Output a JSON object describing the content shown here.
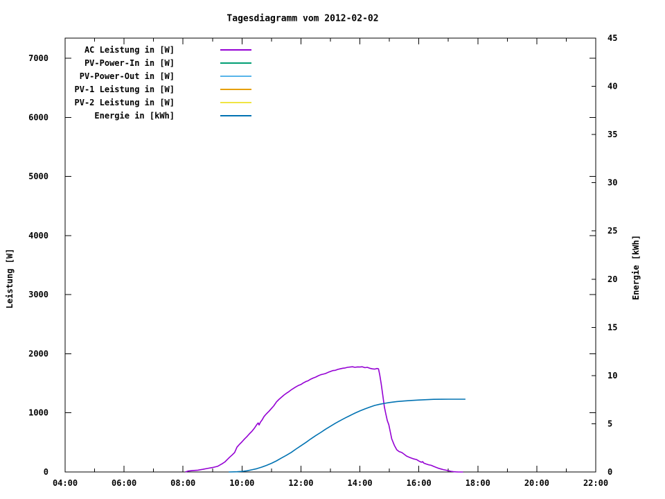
{
  "title": "Tagesdiagramm vom 2012-02-02",
  "axes": {
    "ylabel": "Leistung [W]",
    "y2label": "Energie [kWh]",
    "x_tick_labels": [
      "04:00",
      "06:00",
      "08:00",
      "10:00",
      "12:00",
      "14:00",
      "16:00",
      "18:00",
      "20:00",
      "22:00"
    ],
    "y_tick_labels": [
      "0",
      "1000",
      "2000",
      "3000",
      "4000",
      "5000",
      "6000",
      "7000"
    ],
    "y2_tick_labels": [
      "0",
      "5",
      "10",
      "15",
      "20",
      "25",
      "30",
      "35",
      "40",
      "45"
    ]
  },
  "legend": [
    {
      "label": "AC Leistung in [W]",
      "color": "#9400d3"
    },
    {
      "label": "PV-Power-In in [W]",
      "color": "#009e73"
    },
    {
      "label": "PV-Power-Out in [W]",
      "color": "#56b4e9"
    },
    {
      "label": "PV-1 Leistung in [W]",
      "color": "#e69f00"
    },
    {
      "label": "PV-2 Leistung in [W]",
      "color": "#f0e442"
    },
    {
      "label": "Energie in [kWh]",
      "color": "#0072b2"
    }
  ],
  "chart_data": {
    "type": "line",
    "title": "Tagesdiagramm vom 2012-02-02",
    "x_axis": {
      "label": "",
      "unit": "hours",
      "range": [
        4,
        22
      ],
      "major_tick_hours": [
        4,
        6,
        8,
        10,
        12,
        14,
        16,
        18,
        20,
        22
      ],
      "minor_tick_hours": [
        5,
        7,
        9,
        11,
        13,
        15,
        17,
        19,
        21
      ]
    },
    "y_axis": {
      "label": "Leistung [W]",
      "range": [
        0,
        7340
      ],
      "ticks": [
        0,
        1000,
        2000,
        3000,
        4000,
        5000,
        6000,
        7000
      ]
    },
    "y2_axis": {
      "label": "Energie [kWh]",
      "range": [
        0,
        45
      ],
      "ticks": [
        0,
        5,
        10,
        15,
        20,
        25,
        30,
        35,
        40,
        45
      ]
    },
    "grid": false,
    "legend_position": "inside-top-left",
    "series": [
      {
        "name": "AC Leistung in [W]",
        "color": "#9400d3",
        "axis": "y",
        "points": [
          [
            8.08,
            0
          ],
          [
            8.17,
            15
          ],
          [
            8.33,
            25
          ],
          [
            8.5,
            30
          ],
          [
            8.67,
            45
          ],
          [
            8.83,
            60
          ],
          [
            9.0,
            75
          ],
          [
            9.17,
            95
          ],
          [
            9.33,
            140
          ],
          [
            9.42,
            170
          ],
          [
            9.5,
            210
          ],
          [
            9.58,
            250
          ],
          [
            9.67,
            290
          ],
          [
            9.75,
            330
          ],
          [
            9.83,
            420
          ],
          [
            9.92,
            470
          ],
          [
            10.0,
            510
          ],
          [
            10.08,
            555
          ],
          [
            10.17,
            600
          ],
          [
            10.25,
            645
          ],
          [
            10.33,
            685
          ],
          [
            10.42,
            740
          ],
          [
            10.5,
            800
          ],
          [
            10.55,
            830
          ],
          [
            10.58,
            795
          ],
          [
            10.63,
            845
          ],
          [
            10.67,
            870
          ],
          [
            10.75,
            940
          ],
          [
            10.83,
            985
          ],
          [
            10.92,
            1030
          ],
          [
            11.0,
            1075
          ],
          [
            11.08,
            1120
          ],
          [
            11.17,
            1185
          ],
          [
            11.25,
            1225
          ],
          [
            11.33,
            1260
          ],
          [
            11.42,
            1300
          ],
          [
            11.5,
            1330
          ],
          [
            11.58,
            1355
          ],
          [
            11.67,
            1390
          ],
          [
            11.75,
            1415
          ],
          [
            11.83,
            1440
          ],
          [
            11.92,
            1465
          ],
          [
            12.0,
            1480
          ],
          [
            12.08,
            1505
          ],
          [
            12.17,
            1530
          ],
          [
            12.25,
            1545
          ],
          [
            12.33,
            1570
          ],
          [
            12.42,
            1590
          ],
          [
            12.5,
            1605
          ],
          [
            12.58,
            1625
          ],
          [
            12.67,
            1645
          ],
          [
            12.75,
            1655
          ],
          [
            12.83,
            1665
          ],
          [
            12.92,
            1685
          ],
          [
            13.0,
            1700
          ],
          [
            13.08,
            1715
          ],
          [
            13.17,
            1720
          ],
          [
            13.25,
            1735
          ],
          [
            13.33,
            1745
          ],
          [
            13.42,
            1755
          ],
          [
            13.5,
            1760
          ],
          [
            13.58,
            1770
          ],
          [
            13.67,
            1775
          ],
          [
            13.75,
            1780
          ],
          [
            13.83,
            1770
          ],
          [
            13.92,
            1778
          ],
          [
            14.0,
            1775
          ],
          [
            14.08,
            1780
          ],
          [
            14.17,
            1765
          ],
          [
            14.25,
            1770
          ],
          [
            14.33,
            1755
          ],
          [
            14.42,
            1745
          ],
          [
            14.5,
            1740
          ],
          [
            14.58,
            1750
          ],
          [
            14.63,
            1745
          ],
          [
            14.67,
            1650
          ],
          [
            14.72,
            1500
          ],
          [
            14.78,
            1290
          ],
          [
            14.83,
            1100
          ],
          [
            14.88,
            980
          ],
          [
            14.93,
            870
          ],
          [
            14.98,
            800
          ],
          [
            15.03,
            680
          ],
          [
            15.08,
            560
          ],
          [
            15.17,
            450
          ],
          [
            15.25,
            375
          ],
          [
            15.33,
            345
          ],
          [
            15.42,
            330
          ],
          [
            15.5,
            300
          ],
          [
            15.58,
            270
          ],
          [
            15.67,
            250
          ],
          [
            15.75,
            235
          ],
          [
            15.83,
            220
          ],
          [
            15.92,
            210
          ],
          [
            16.0,
            185
          ],
          [
            16.08,
            165
          ],
          [
            16.13,
            175
          ],
          [
            16.17,
            150
          ],
          [
            16.25,
            135
          ],
          [
            16.33,
            122
          ],
          [
            16.42,
            112
          ],
          [
            16.5,
            95
          ],
          [
            16.58,
            80
          ],
          [
            16.67,
            62
          ],
          [
            16.75,
            50
          ],
          [
            16.83,
            40
          ],
          [
            16.92,
            30
          ],
          [
            17.0,
            22
          ],
          [
            17.08,
            12
          ],
          [
            17.17,
            6
          ],
          [
            17.25,
            2
          ],
          [
            17.33,
            0
          ],
          [
            17.5,
            0
          ]
        ]
      },
      {
        "name": "PV-Power-In in [W]",
        "color": "#009e73",
        "axis": "y",
        "points": []
      },
      {
        "name": "PV-Power-Out in [W]",
        "color": "#56b4e9",
        "axis": "y",
        "points": []
      },
      {
        "name": "PV-1 Leistung in [W]",
        "color": "#e69f00",
        "axis": "y",
        "points": []
      },
      {
        "name": "PV-2 Leistung in [W]",
        "color": "#f0e442",
        "axis": "y",
        "points": []
      },
      {
        "name": "Energie in [kWh]",
        "color": "#0072b2",
        "axis": "y2",
        "points": [
          [
            9.55,
            0
          ],
          [
            9.83,
            0.02
          ],
          [
            10.0,
            0.06
          ],
          [
            10.17,
            0.12
          ],
          [
            10.33,
            0.22
          ],
          [
            10.5,
            0.34
          ],
          [
            10.67,
            0.5
          ],
          [
            10.83,
            0.68
          ],
          [
            11.0,
            0.9
          ],
          [
            11.17,
            1.15
          ],
          [
            11.33,
            1.43
          ],
          [
            11.5,
            1.72
          ],
          [
            11.67,
            2.03
          ],
          [
            11.83,
            2.37
          ],
          [
            12.0,
            2.72
          ],
          [
            12.17,
            3.07
          ],
          [
            12.33,
            3.42
          ],
          [
            12.5,
            3.77
          ],
          [
            12.67,
            4.1
          ],
          [
            12.83,
            4.43
          ],
          [
            13.0,
            4.74
          ],
          [
            13.17,
            5.05
          ],
          [
            13.33,
            5.33
          ],
          [
            13.5,
            5.6
          ],
          [
            13.67,
            5.86
          ],
          [
            13.83,
            6.1
          ],
          [
            14.0,
            6.33
          ],
          [
            14.17,
            6.54
          ],
          [
            14.33,
            6.72
          ],
          [
            14.5,
            6.9
          ],
          [
            14.67,
            7.02
          ],
          [
            14.83,
            7.12
          ],
          [
            15.0,
            7.2
          ],
          [
            15.25,
            7.3
          ],
          [
            15.5,
            7.36
          ],
          [
            15.75,
            7.42
          ],
          [
            16.0,
            7.46
          ],
          [
            16.25,
            7.5
          ],
          [
            16.5,
            7.53
          ],
          [
            16.75,
            7.54
          ],
          [
            17.0,
            7.55
          ],
          [
            17.25,
            7.55
          ],
          [
            17.58,
            7.55
          ]
        ]
      }
    ]
  }
}
